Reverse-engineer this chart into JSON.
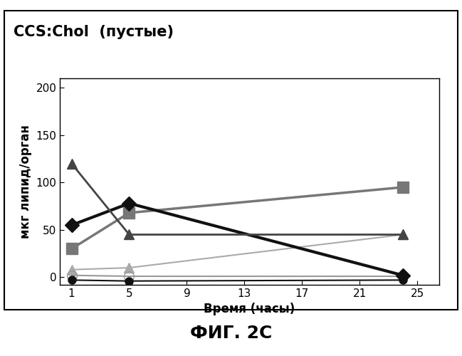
{
  "title": "CCS:Chol  (пустые)",
  "xlabel": "Время (часы)",
  "ylabel": "мкг липид/орган",
  "caption": "ФИГ. 2С",
  "xlim": [
    0.2,
    26.5
  ],
  "ylim": [
    -8,
    210
  ],
  "xticks": [
    1,
    5,
    9,
    13,
    17,
    21,
    25
  ],
  "yticks": [
    0,
    50,
    100,
    150,
    200
  ],
  "series": [
    {
      "name": "black_diamond",
      "x": [
        1,
        5,
        24
      ],
      "y": [
        55,
        78,
        2
      ],
      "color": "#111111",
      "marker": "D",
      "markersize": 10,
      "linewidth": 3.0,
      "zorder": 5
    },
    {
      "name": "gray_square",
      "x": [
        1,
        5,
        24
      ],
      "y": [
        30,
        68,
        95
      ],
      "color": "#777777",
      "marker": "s",
      "markersize": 11,
      "linewidth": 2.5,
      "zorder": 4
    },
    {
      "name": "dark_triangle_up",
      "x": [
        1,
        5,
        24
      ],
      "y": [
        120,
        45,
        45
      ],
      "color": "#444444",
      "marker": "^",
      "markersize": 10,
      "linewidth": 2.0,
      "zorder": 5
    },
    {
      "name": "light_gray_triangle",
      "x": [
        1,
        5,
        24
      ],
      "y": [
        8,
        10,
        45
      ],
      "color": "#aaaaaa",
      "marker": "^",
      "markersize": 10,
      "linewidth": 1.5,
      "zorder": 3
    },
    {
      "name": "open_circle_gray",
      "x": [
        1,
        5,
        24
      ],
      "y": [
        2,
        1,
        1
      ],
      "color": "#999999",
      "marker": "o",
      "markersize": 10,
      "linewidth": 1.5,
      "fillstyle": "none",
      "zorder": 3
    },
    {
      "name": "black_circle",
      "x": [
        1,
        5,
        24
      ],
      "y": [
        -3,
        -4,
        -3
      ],
      "color": "#111111",
      "marker": "o",
      "markersize": 8,
      "linewidth": 1.5,
      "zorder": 3
    }
  ],
  "bg_color": "#ffffff",
  "title_fontsize": 15,
  "label_fontsize": 12,
  "caption_fontsize": 18,
  "tick_fontsize": 11
}
